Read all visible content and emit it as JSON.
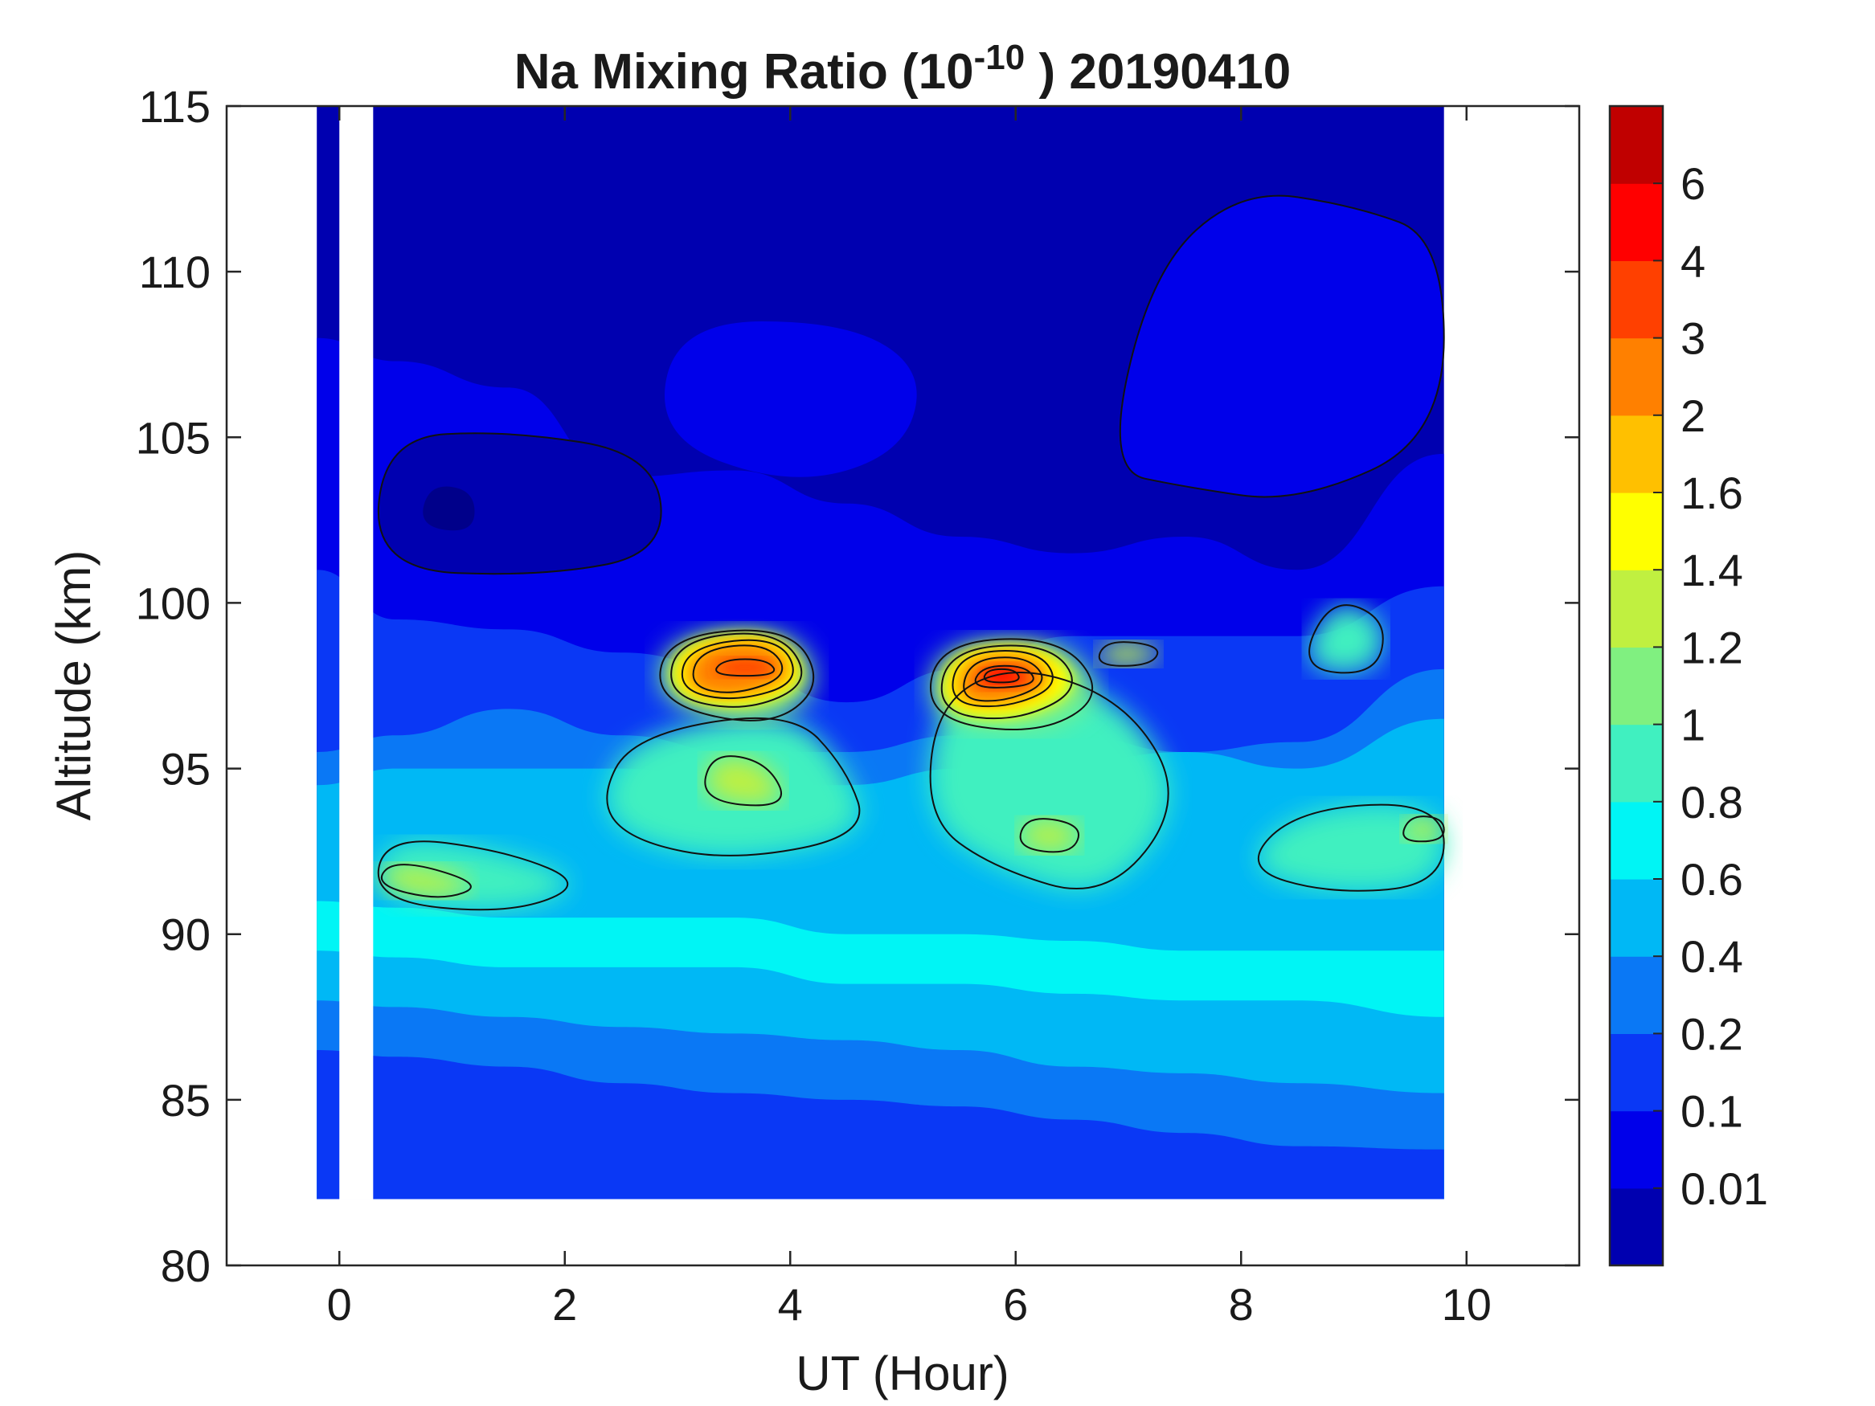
{
  "chart_data": {
    "type": "heatmap",
    "subtype": "filled-contour",
    "title": {
      "prefix": "Na Mixing Ratio (10",
      "superscript": "-10",
      "suffix": " ) 20190410"
    },
    "xlabel": "UT (Hour)",
    "ylabel": "Altitude (km)",
    "xlim": [
      -1,
      11
    ],
    "ylim": [
      80,
      115
    ],
    "xticks": [
      "0",
      "2",
      "4",
      "6",
      "8",
      "10"
    ],
    "xtick_values": [
      0,
      2,
      4,
      6,
      8,
      10
    ],
    "yticks": [
      "80",
      "85",
      "90",
      "95",
      "100",
      "105",
      "110",
      "115"
    ],
    "ytick_values": [
      80,
      85,
      90,
      95,
      100,
      105,
      110,
      115
    ],
    "data_extent": {
      "ut": [
        -0.2,
        9.8
      ],
      "altitude": [
        82,
        115
      ]
    },
    "data_gaps": [
      {
        "ut": [
          0,
          0.3
        ],
        "altitude": [
          82,
          115
        ]
      }
    ],
    "colorbar": {
      "levels": [
        "0.01",
        "0.1",
        "0.2",
        "0.4",
        "0.6",
        "0.8",
        "1",
        "1.2",
        "1.4",
        "1.6",
        "2",
        "3",
        "4",
        "6"
      ],
      "colors": [
        "#0000b0",
        "#0000ea",
        "#0a38f5",
        "#0a78f5",
        "#00b8f5",
        "#00f5f5",
        "#40f0c0",
        "#80f080",
        "#c0f040",
        "#ffff00",
        "#ffc000",
        "#ff8000",
        "#ff4000",
        "#ff0000",
        "#c00000"
      ]
    },
    "features": [
      {
        "ut": 3.6,
        "altitude": 97.8,
        "value": 3,
        "description": "peak"
      },
      {
        "ut": 5.8,
        "altitude": 97.8,
        "value": 4,
        "description": "peak"
      },
      {
        "ut": 3.5,
        "altitude": 94,
        "value": 1.4
      },
      {
        "ut": 6.3,
        "altitude": 93,
        "value": 1.4
      },
      {
        "ut": 7.0,
        "altitude": 98.5,
        "value": 1.4
      },
      {
        "ut": 0.6,
        "altitude": 92,
        "value": 1.4
      },
      {
        "ut": 9.7,
        "altitude": 93,
        "value": 1.4
      },
      {
        "ut": 1.0,
        "altitude": 102.5,
        "value": 0.01
      },
      {
        "ut": 3.5,
        "altitude": 103,
        "value": 0.01
      }
    ]
  }
}
